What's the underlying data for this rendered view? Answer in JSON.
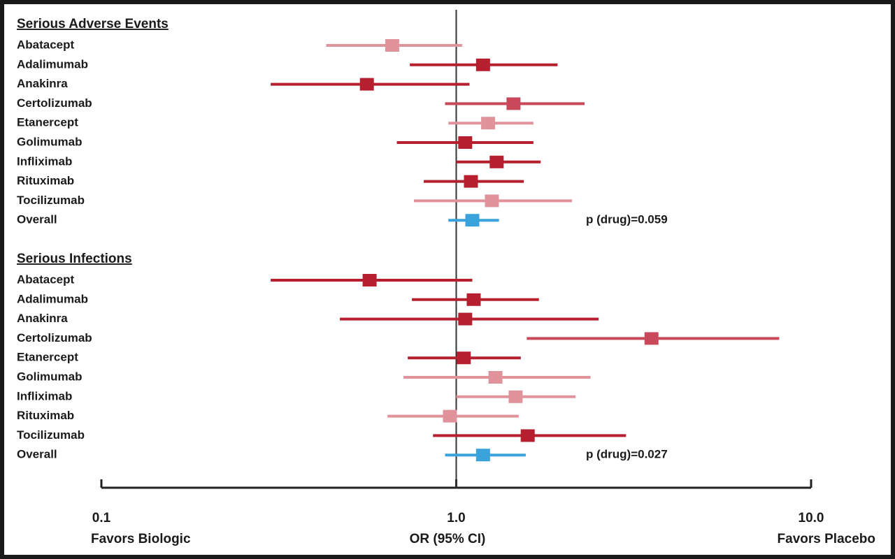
{
  "chart_data": {
    "type": "forest",
    "log_x": true,
    "xlim": [
      0.1,
      10
    ],
    "xticks": [
      {
        "value": 0.1,
        "label": "0.1"
      },
      {
        "value": 1,
        "label": "1.0"
      },
      {
        "value": 10,
        "label": "10.0"
      }
    ],
    "xlabel": "OR (95% CI)",
    "left_label": "Favors Biologic",
    "right_label": "Favors Placebo",
    "reference": 1,
    "groups": [
      {
        "title": "Serious Adverse Events",
        "p_label": "p (drug)=0.059",
        "rows": [
          {
            "label": "Abatacept",
            "value": 0.66,
            "lo": 0.43,
            "hi": 1.04,
            "color": "#e0939b"
          },
          {
            "label": "Adalimumab",
            "value": 1.19,
            "lo": 0.74,
            "hi": 1.93,
            "color": "#b51f2e"
          },
          {
            "label": "Anakinra",
            "value": 0.56,
            "lo": 0.3,
            "hi": 1.09,
            "color": "#b51f2e"
          },
          {
            "label": "Certolizumab",
            "value": 1.45,
            "lo": 0.93,
            "hi": 2.3,
            "color": "#c9485a"
          },
          {
            "label": "Etanercept",
            "value": 1.23,
            "lo": 0.95,
            "hi": 1.65,
            "color": "#e0939b"
          },
          {
            "label": "Golimumab",
            "value": 1.06,
            "lo": 0.68,
            "hi": 1.65,
            "color": "#b51f2e"
          },
          {
            "label": "Infliximab",
            "value": 1.3,
            "lo": 1.0,
            "hi": 1.73,
            "color": "#b51f2e"
          },
          {
            "label": "Rituximab",
            "value": 1.1,
            "lo": 0.81,
            "hi": 1.55,
            "color": "#b51f2e"
          },
          {
            "label": "Tocilizumab",
            "value": 1.26,
            "lo": 0.76,
            "hi": 2.12,
            "color": "#e0939b"
          },
          {
            "label": "Overall",
            "value": 1.11,
            "lo": 0.95,
            "hi": 1.32,
            "color": "#3ba3dc"
          }
        ]
      },
      {
        "title": "Serious Infections",
        "p_label": "p (drug)=0.027",
        "rows": [
          {
            "label": "Abatacept",
            "value": 0.57,
            "lo": 0.3,
            "hi": 1.11,
            "color": "#b51f2e"
          },
          {
            "label": "Adalimumab",
            "value": 1.12,
            "lo": 0.75,
            "hi": 1.71,
            "color": "#b51f2e"
          },
          {
            "label": "Anakinra",
            "value": 1.06,
            "lo": 0.47,
            "hi": 2.52,
            "color": "#b51f2e"
          },
          {
            "label": "Certolizumab",
            "value": 3.55,
            "lo": 1.58,
            "hi": 8.13,
            "color": "#c9485a"
          },
          {
            "label": "Etanercept",
            "value": 1.05,
            "lo": 0.73,
            "hi": 1.52,
            "color": "#b51f2e"
          },
          {
            "label": "Golimumab",
            "value": 1.29,
            "lo": 0.71,
            "hi": 2.39,
            "color": "#e0939b"
          },
          {
            "label": "Infliximab",
            "value": 1.47,
            "lo": 1.0,
            "hi": 2.17,
            "color": "#e0939b"
          },
          {
            "label": "Rituximab",
            "value": 0.96,
            "lo": 0.64,
            "hi": 1.5,
            "color": "#e0939b"
          },
          {
            "label": "Tocilizumab",
            "value": 1.59,
            "lo": 0.86,
            "hi": 3.01,
            "color": "#b51f2e"
          },
          {
            "label": "Overall",
            "value": 1.19,
            "lo": 0.93,
            "hi": 1.57,
            "color": "#3ba3dc"
          }
        ]
      }
    ]
  }
}
